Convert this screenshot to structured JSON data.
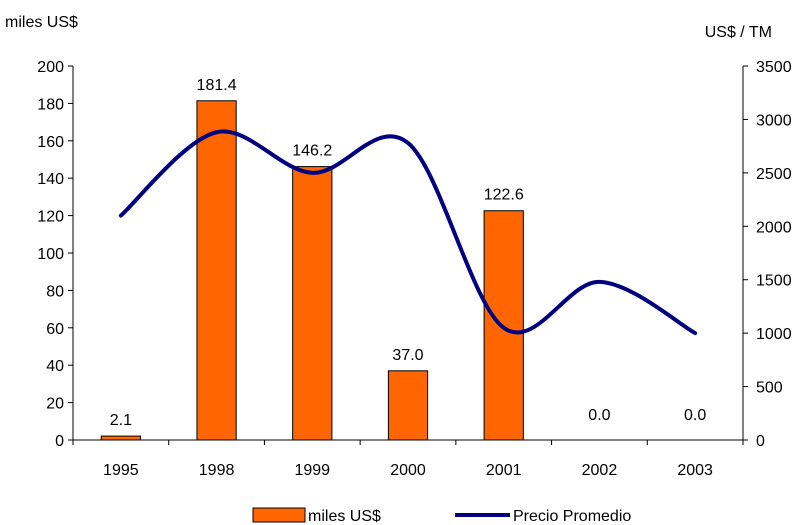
{
  "chart_data": {
    "type": "bar",
    "categories": [
      "1995",
      "1998",
      "1999",
      "2000",
      "2001",
      "2002",
      "2003"
    ],
    "series": [
      {
        "name": "miles US$",
        "type": "bar",
        "axis": "left",
        "color": "#FF6600",
        "values": [
          2.1,
          181.4,
          146.2,
          37.0,
          122.6,
          0.0,
          0.0
        ],
        "labels": [
          "2.1",
          "181.4",
          "146.2",
          "37.0",
          "122.6",
          "0.0",
          "0.0"
        ]
      },
      {
        "name": "Precio Promedio",
        "type": "line",
        "axis": "right",
        "color": "#000080",
        "values": [
          2100,
          2880,
          2500,
          2780,
          1050,
          1480,
          1000
        ]
      }
    ],
    "ylabel": "miles US$",
    "y2label": "US$ / TM",
    "ylim": [
      0,
      200
    ],
    "y2lim": [
      0,
      3500
    ],
    "yticks": [
      "0",
      "20",
      "40",
      "60",
      "80",
      "100",
      "120",
      "140",
      "160",
      "180",
      "200"
    ],
    "y2ticks": [
      "0",
      "500",
      "1000",
      "1500",
      "2000",
      "2500",
      "3000",
      "3500"
    ],
    "grid": false,
    "legend": "bottom"
  }
}
